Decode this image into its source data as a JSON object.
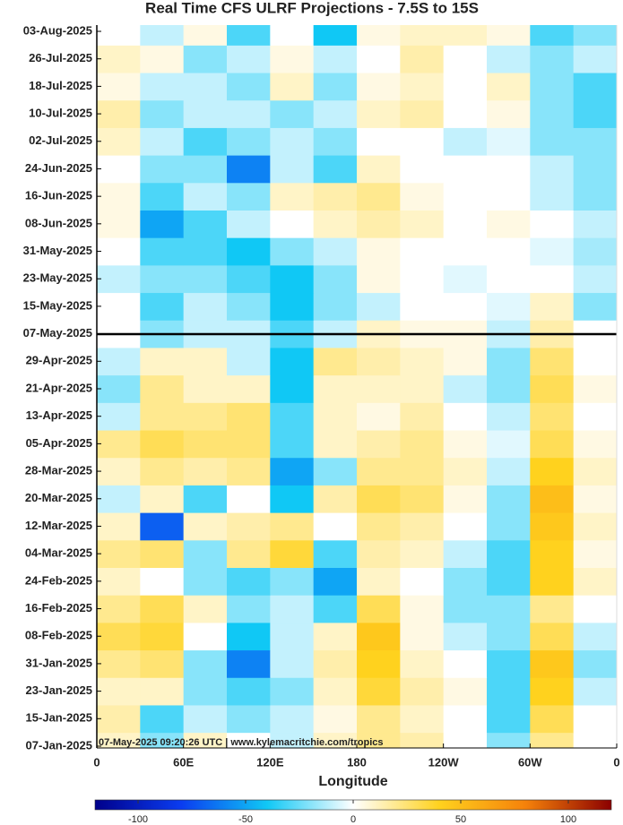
{
  "chart_data": {
    "type": "heatmap",
    "title": "Real Time CFS ULRF Projections - 7.5S to 15S",
    "x_label": "Longitude",
    "annotation": "07-May-2025 09:20:26 UTC | www.kylemacritchie.com/tropics",
    "xlim": [
      0,
      360
    ],
    "xticks": [
      0,
      {
        "value": 60,
        "label": "60E"
      },
      {
        "value": 120,
        "label": "120E"
      },
      180,
      {
        "value": 240,
        "label": "120W"
      },
      {
        "value": 300,
        "label": "60W"
      },
      {
        "value": 360,
        "label": "0"
      }
    ],
    "x": [
      15,
      45,
      75,
      105,
      135,
      165,
      195,
      225,
      255,
      285,
      315,
      345
    ],
    "y_categories": [
      "07-Jan-2025",
      "15-Jan-2025",
      "23-Jan-2025",
      "31-Jan-2025",
      "08-Feb-2025",
      "16-Feb-2025",
      "24-Feb-2025",
      "04-Mar-2025",
      "12-Mar-2025",
      "20-Mar-2025",
      "28-Mar-2025",
      "05-Apr-2025",
      "13-Apr-2025",
      "21-Apr-2025",
      "29-Apr-2025",
      "07-May-2025",
      "15-May-2025",
      "23-May-2025",
      "31-May-2025",
      "08-Jun-2025",
      "16-Jun-2025",
      "24-Jun-2025",
      "02-Jul-2025",
      "10-Jul-2025",
      "18-Jul-2025",
      "26-Jul-2025",
      "03-Aug-2025"
    ],
    "z": [
      [
        10,
        -20,
        10,
        0,
        -10,
        10,
        20,
        15,
        0,
        -20,
        20,
        0
      ],
      [
        15,
        -30,
        -10,
        -20,
        -10,
        5,
        20,
        10,
        0,
        -30,
        30,
        0
      ],
      [
        10,
        10,
        -20,
        -30,
        -20,
        10,
        35,
        15,
        5,
        -30,
        40,
        -10
      ],
      [
        20,
        25,
        -20,
        -60,
        -10,
        15,
        40,
        10,
        0,
        -30,
        45,
        -20
      ],
      [
        30,
        35,
        0,
        -40,
        -10,
        10,
        45,
        5,
        -10,
        -20,
        30,
        -10
      ],
      [
        20,
        30,
        10,
        -20,
        -10,
        -30,
        30,
        5,
        -20,
        -20,
        20,
        0
      ],
      [
        10,
        0,
        -20,
        -30,
        -20,
        -50,
        10,
        0,
        -20,
        -30,
        40,
        10
      ],
      [
        20,
        25,
        -20,
        20,
        35,
        -30,
        15,
        10,
        -10,
        -30,
        40,
        5
      ],
      [
        10,
        -70,
        10,
        15,
        20,
        0,
        20,
        15,
        0,
        -20,
        45,
        10
      ],
      [
        -10,
        10,
        -30,
        0,
        -40,
        15,
        30,
        25,
        5,
        -20,
        50,
        5
      ],
      [
        10,
        20,
        15,
        20,
        -50,
        -20,
        20,
        20,
        10,
        -10,
        40,
        10
      ],
      [
        20,
        30,
        25,
        25,
        -30,
        10,
        15,
        20,
        5,
        -5,
        30,
        5
      ],
      [
        -10,
        20,
        20,
        25,
        -30,
        10,
        5,
        15,
        0,
        -10,
        25,
        0
      ],
      [
        -20,
        20,
        10,
        10,
        -40,
        10,
        10,
        10,
        -10,
        -20,
        30,
        5
      ],
      [
        -10,
        10,
        10,
        -10,
        -40,
        20,
        15,
        10,
        5,
        -20,
        25,
        0
      ],
      [
        0,
        -20,
        -10,
        -10,
        -30,
        -10,
        10,
        5,
        5,
        -10,
        15,
        0
      ],
      [
        0,
        -30,
        -10,
        -20,
        -40,
        -20,
        -10,
        0,
        0,
        -5,
        10,
        -20
      ],
      [
        -10,
        -20,
        -20,
        -30,
        -40,
        -20,
        5,
        0,
        -5,
        0,
        0,
        -10
      ],
      [
        0,
        -30,
        -30,
        -40,
        -20,
        -10,
        5,
        0,
        0,
        0,
        -5,
        -15
      ],
      [
        5,
        -50,
        -30,
        -10,
        0,
        10,
        15,
        10,
        0,
        5,
        0,
        -10
      ],
      [
        5,
        -30,
        -10,
        -20,
        10,
        15,
        20,
        5,
        0,
        0,
        -10,
        -20
      ],
      [
        0,
        -20,
        -20,
        -60,
        -10,
        -30,
        10,
        0,
        0,
        0,
        -10,
        -20
      ],
      [
        10,
        -10,
        -30,
        -20,
        -10,
        -20,
        0,
        0,
        -10,
        -5,
        -20,
        -20
      ],
      [
        15,
        -20,
        -10,
        -10,
        -20,
        -10,
        10,
        15,
        0,
        5,
        -20,
        -30
      ],
      [
        5,
        -10,
        -10,
        -20,
        10,
        -20,
        5,
        10,
        0,
        10,
        -20,
        -30
      ],
      [
        10,
        5,
        -20,
        -10,
        5,
        -10,
        0,
        15,
        0,
        -10,
        -20,
        -10
      ],
      [
        0,
        -10,
        5,
        -30,
        0,
        -40,
        5,
        10,
        10,
        5,
        -30,
        -20
      ]
    ],
    "colormap": [
      "#00008b",
      "#0a3cf0",
      "#10c8f5",
      "#ffffff",
      "#ffd21e",
      "#f5820a",
      "#8b0000"
    ],
    "colorbar": {
      "lim": [
        -120,
        120
      ],
      "ticks": [
        -100,
        -50,
        0,
        50,
        100
      ]
    }
  }
}
